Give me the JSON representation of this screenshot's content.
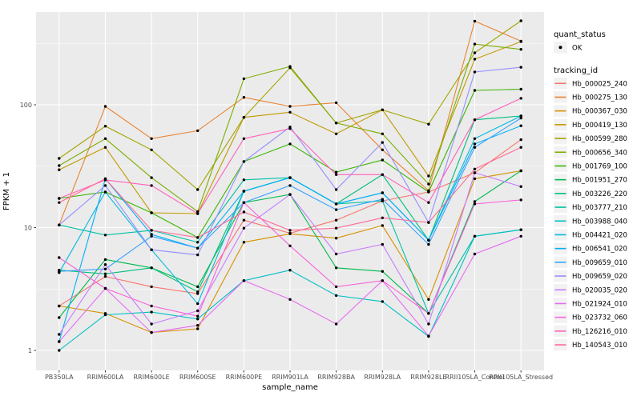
{
  "chart_data": {
    "type": "line",
    "title": "",
    "xlabel": "sample_name",
    "ylabel": "FPKM + 1",
    "y_scale": "log10",
    "y_ticks": [
      "1",
      "10",
      "100"
    ],
    "y_tick_values": [
      1,
      10,
      100
    ],
    "y_minor_values": [
      3.162,
      31.623,
      316.23
    ],
    "ylim": [
      0.69,
      570
    ],
    "grid": true,
    "legend_position": "right",
    "panel_bg": "#EBEBEB",
    "grid_color": "#FFFFFF",
    "point_color": "#000000",
    "tick_color": "#333333",
    "tick_label_color": "#4D4D4D",
    "legend_key_bg": "#F2F2F2",
    "categories": [
      "PB350LA",
      "RRIM600LA",
      "RRIM600LE",
      "RRIM600SE",
      "RRIM600PE",
      "RRIM901LA",
      "RRIM928BA",
      "RRIM928LA",
      "RRIM928LE",
      "RRII105LA_Control",
      "RRII105LA_Stressed"
    ],
    "legend": {
      "quant_status_title": "quant_status",
      "quant_status_items": [
        {
          "label": "OK",
          "marker": "point",
          "color": "#000000"
        }
      ],
      "tracking_title": "tracking_id"
    },
    "series": [
      {
        "name": "Hb_000025_240",
        "color": "#F8766D",
        "values": [
          2.3,
          4.0,
          3.3,
          2.9,
          11.5,
          9.0,
          11.5,
          16.5,
          19.5,
          28,
          52
        ]
      },
      {
        "name": "Hb_000275_130",
        "color": "#EA8331",
        "values": [
          10.5,
          97,
          53,
          61.5,
          115,
          97,
          104,
          43,
          20,
          480,
          330
        ]
      },
      {
        "name": "Hb_000367_030",
        "color": "#D89000",
        "values": [
          2.3,
          2.0,
          1.4,
          1.5,
          7.6,
          8.9,
          8.2,
          10.4,
          2.6,
          25,
          29
        ]
      },
      {
        "name": "Hb_000419_130",
        "color": "#C09B00",
        "values": [
          29.6,
          45,
          13.2,
          13,
          79,
          87,
          58,
          91,
          26.3,
          235,
          327
        ]
      },
      {
        "name": "Hb_000599_280",
        "color": "#A3A500",
        "values": [
          36.6,
          67,
          43,
          20.4,
          79,
          200,
          71,
          91,
          69.6,
          265,
          483
        ]
      },
      {
        "name": "Hb_000656_340",
        "color": "#7CAE00",
        "values": [
          32,
          53,
          25.5,
          13.5,
          163,
          205,
          71,
          58,
          22.6,
          312,
          283
        ]
      },
      {
        "name": "Hb_001769_100",
        "color": "#39B600",
        "values": [
          17.3,
          19.5,
          13.2,
          8.3,
          34.5,
          48,
          28.3,
          35.5,
          19.5,
          131,
          134
        ]
      },
      {
        "name": "Hb_001951_270",
        "color": "#00BB4E",
        "values": [
          1.85,
          5.5,
          4.7,
          3.3,
          16,
          18.6,
          4.7,
          4.4,
          2.0,
          16.3,
          29
        ]
      },
      {
        "name": "Hb_003226_220",
        "color": "#00BF7D",
        "values": [
          4.5,
          4.2,
          4.7,
          3.0,
          19.8,
          25.5,
          15.6,
          27,
          7.9,
          75.5,
          81
        ]
      },
      {
        "name": "Hb_003777_210",
        "color": "#00C1A3",
        "values": [
          10.5,
          8.7,
          9.5,
          7.6,
          24.5,
          25.5,
          15.6,
          16.5,
          2.0,
          8.5,
          9.6
        ]
      },
      {
        "name": "Hb_003988_040",
        "color": "#00BFC4",
        "values": [
          1.0,
          1.95,
          2.05,
          1.8,
          3.7,
          4.5,
          2.8,
          2.5,
          1.3,
          8.5,
          9.6
        ]
      },
      {
        "name": "Hb_004421_020",
        "color": "#00BAE0",
        "values": [
          4.3,
          19.5,
          6.6,
          2.4,
          19.8,
          25.5,
          15.6,
          19.2,
          7.9,
          53,
          81
        ]
      },
      {
        "name": "Hb_006541_020",
        "color": "#00B0F6",
        "values": [
          1.18,
          25,
          8.8,
          6.8,
          19.8,
          25.5,
          15.6,
          19.2,
          7.9,
          48,
          67.5
        ]
      },
      {
        "name": "Hb_009659_010",
        "color": "#35A2FF",
        "values": [
          4.4,
          4.6,
          8.5,
          6.8,
          16,
          22,
          14,
          17,
          7.3,
          45,
          78
        ]
      },
      {
        "name": "Hb_009659_020",
        "color": "#9590FF",
        "values": [
          10.5,
          22,
          6.6,
          6.0,
          34.5,
          66,
          20.4,
          49.3,
          11,
          185,
          202
        ]
      },
      {
        "name": "Hb_020035_020",
        "color": "#C77CFF",
        "values": [
          1.35,
          5.0,
          1.64,
          2.1,
          9.9,
          18.6,
          6.1,
          7.3,
          1.64,
          28,
          21.6
        ]
      },
      {
        "name": "Hb_021924_010",
        "color": "#E76BF3",
        "values": [
          1.18,
          3.2,
          1.4,
          1.6,
          3.7,
          2.6,
          1.64,
          3.7,
          1.31,
          6.1,
          8.5
        ]
      },
      {
        "name": "Hb_023732_060",
        "color": "#FA62DB",
        "values": [
          5.7,
          3.2,
          2.3,
          1.9,
          16,
          7.1,
          3.3,
          3.7,
          2.0,
          15.6,
          16.8
        ]
      },
      {
        "name": "Hb_126216_010",
        "color": "#FF62BC",
        "values": [
          17.3,
          24.4,
          22,
          13,
          53,
          64,
          27,
          27,
          16,
          75.5,
          113
        ]
      },
      {
        "name": "Hb_140543_010",
        "color": "#FF6A98",
        "values": [
          16,
          25,
          9.5,
          8.3,
          13.4,
          9.5,
          9.9,
          12,
          11,
          30,
          45
        ]
      }
    ]
  }
}
